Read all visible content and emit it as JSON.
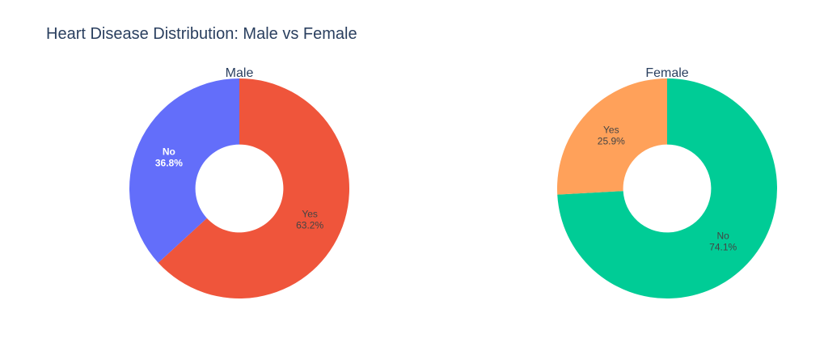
{
  "chart_title": "Heart Disease Distribution: Male vs Female",
  "chart_data": [
    {
      "type": "pie",
      "hole": 0.4,
      "title": "Male",
      "labels": [
        "No",
        "Yes"
      ],
      "values": [
        36.8,
        63.2
      ],
      "display_text": [
        "No\n36.8%",
        "Yes\n63.2%"
      ],
      "colors": [
        "#636efa",
        "#ef553b"
      ],
      "text_colors": [
        "#ffffff",
        "#444444"
      ],
      "text_bold": [
        true,
        false
      ],
      "sort_order": "descending",
      "direction": "clockwise"
    },
    {
      "type": "pie",
      "hole": 0.4,
      "title": "Female",
      "labels": [
        "No",
        "Yes"
      ],
      "values": [
        74.1,
        25.9
      ],
      "display_text": [
        "No\n74.1%",
        "Yes\n25.9%"
      ],
      "colors": [
        "#00cc96",
        "#ffa15a"
      ],
      "text_colors": [
        "#444444",
        "#444444"
      ],
      "text_bold": [
        false,
        false
      ],
      "sort_order": "descending",
      "direction": "clockwise"
    }
  ]
}
